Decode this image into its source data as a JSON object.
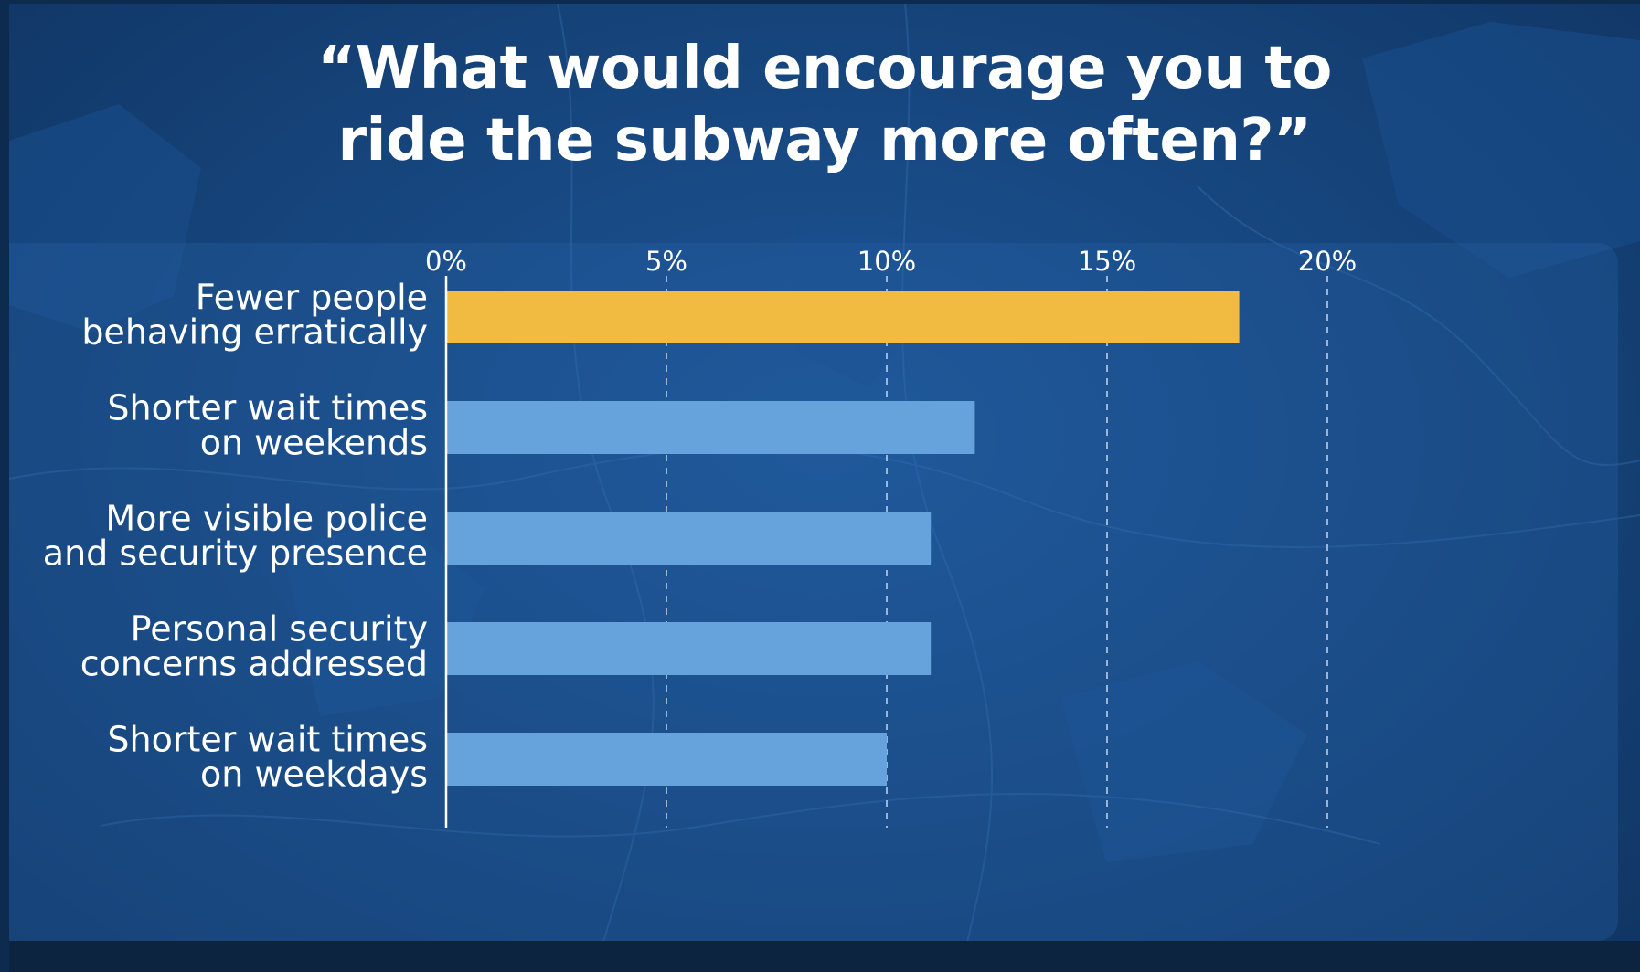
{
  "title": "“What would encourage you to\nride the subway more often?”",
  "colors": {
    "highlight": "#f0bb40",
    "bar": "#66a2dc",
    "gridline": "#c7d6ea",
    "axis": "#ffffff",
    "text": "#ffffff"
  },
  "chart_data": {
    "type": "bar",
    "orientation": "horizontal",
    "title": "“What would encourage you to ride the subway more often?”",
    "xlabel": "",
    "ylabel": "",
    "categories": [
      [
        "Fewer people",
        "behaving erratically"
      ],
      [
        "Shorter wait times",
        "on weekends"
      ],
      [
        "More visible police",
        "and security presence"
      ],
      [
        "Personal security",
        "concerns addressed"
      ],
      [
        "Shorter wait times",
        "on weekdays"
      ]
    ],
    "values": [
      18,
      12,
      11,
      11,
      10
    ],
    "highlight_index": 0,
    "xlim": [
      0,
      20
    ],
    "ticks": [
      0,
      5,
      10,
      15,
      20
    ],
    "tick_labels": [
      "0%",
      "5%",
      "10%",
      "15%",
      "20%"
    ],
    "grid": "vertical dashed",
    "legend": "none"
  }
}
